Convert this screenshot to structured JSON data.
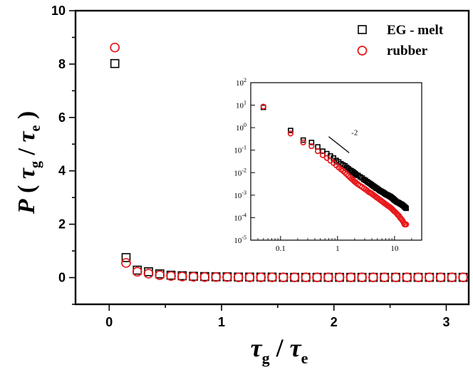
{
  "chart_data": [
    {
      "type": "scatter",
      "title": "",
      "xlabel": "τ_g / τ_e",
      "ylabel": "P ( τ_g / τ_e )",
      "xlabel_parts": {
        "tau": "τ",
        "sub1": "g",
        "slash": " / ",
        "sub2": "e"
      },
      "ylabel_parts": {
        "p": "P",
        "open": " ( ",
        "tau1": "τ",
        "sub1": "g",
        "slash": " / ",
        "tau2": "τ",
        "sub2": "e",
        "close": " )"
      },
      "xlim": [
        -0.3,
        3.2
      ],
      "ylim": [
        -1,
        10
      ],
      "xticks": [
        0,
        1,
        2,
        3
      ],
      "yticks": [
        0,
        2,
        4,
        6,
        8,
        10
      ],
      "grid": false,
      "legend_position": "top-right",
      "series": [
        {
          "name": "EG - melt",
          "marker": "square",
          "color": "#000000",
          "x": [
            0.05,
            0.15,
            0.25,
            0.35,
            0.45,
            0.55,
            0.65,
            0.75,
            0.85,
            0.95,
            1.05,
            1.15,
            1.25,
            1.35,
            1.45,
            1.55,
            1.65,
            1.75,
            1.85,
            1.95,
            2.05,
            2.15,
            2.25,
            2.35,
            2.45,
            2.55,
            2.65,
            2.75,
            2.85,
            2.95,
            3.05,
            3.15
          ],
          "y": [
            8.02,
            0.75,
            0.28,
            0.22,
            0.14,
            0.09,
            0.07,
            0.05,
            0.04,
            0.03,
            0.03,
            0.02,
            0.02,
            0.02,
            0.02,
            0.01,
            0.01,
            0.01,
            0.01,
            0.01,
            0.01,
            0.01,
            0.01,
            0.01,
            0.01,
            0.01,
            0.01,
            0.01,
            0.01,
            0.01,
            0.01,
            0.01
          ]
        },
        {
          "name": "rubber",
          "marker": "circle",
          "color": "#e8191c",
          "x": [
            0.05,
            0.15,
            0.25,
            0.35,
            0.45,
            0.55,
            0.65,
            0.75,
            0.85,
            0.95,
            1.05,
            1.15,
            1.25,
            1.35,
            1.45,
            1.55,
            1.65,
            1.75,
            1.85,
            1.95,
            2.05,
            2.15,
            2.25,
            2.35,
            2.45,
            2.55,
            2.65,
            2.75,
            2.85,
            2.95,
            3.05,
            3.15
          ],
          "y": [
            8.62,
            0.55,
            0.22,
            0.15,
            0.09,
            0.06,
            0.04,
            0.03,
            0.02,
            0.02,
            0.02,
            0.01,
            0.01,
            0.01,
            0.01,
            0.01,
            0.01,
            0.01,
            0.01,
            0.01,
            0.01,
            0.01,
            0.01,
            0.01,
            0.01,
            0.01,
            0.01,
            0.01,
            0.01,
            0.01,
            0.01,
            0.01
          ]
        }
      ]
    },
    {
      "type": "scatter",
      "title": "",
      "xscale": "log",
      "yscale": "log",
      "xlim": [
        0.03,
        30
      ],
      "ylim": [
        1e-05,
        100
      ],
      "xticks": [
        {
          "value": 0.1,
          "label": "0.1"
        },
        {
          "value": 1,
          "label": "1"
        },
        {
          "value": 10,
          "label": "10"
        }
      ],
      "yticks": [
        {
          "value": 1e-05,
          "base": "10",
          "exp": "-5"
        },
        {
          "value": 0.0001,
          "base": "10",
          "exp": "-4"
        },
        {
          "value": 0.001,
          "base": "10",
          "exp": "-3"
        },
        {
          "value": 0.01,
          "base": "10",
          "exp": "-2"
        },
        {
          "value": 0.1,
          "base": "10",
          "exp": "-1"
        },
        {
          "value": 1,
          "base": "10",
          "exp": "0"
        },
        {
          "value": 10,
          "base": "10",
          "exp": "1"
        },
        {
          "value": 100,
          "base": "10",
          "exp": "2"
        }
      ],
      "annotation": {
        "label": "-2",
        "slope": -2,
        "x_start": 0.7,
        "x_end": 1.6,
        "y_start": 0.4
      },
      "series": [
        {
          "name": "EG - melt",
          "marker": "square",
          "color": "#000000",
          "x": [
            0.05,
            0.15,
            0.25,
            0.35,
            0.45,
            0.55,
            0.65,
            0.75,
            0.85,
            0.95,
            1.05,
            1.15,
            1.25,
            1.35,
            1.45,
            1.55,
            1.65,
            1.75,
            1.85,
            1.95,
            2.05,
            2.15,
            2.3,
            2.5,
            2.7,
            2.9,
            3.1,
            3.3,
            3.5,
            3.7,
            3.9,
            4.1,
            4.3,
            4.5,
            4.7,
            4.9,
            5.2,
            5.5,
            5.8,
            6.1,
            6.4,
            6.7,
            7.0,
            7.3,
            7.6,
            7.9,
            8.2,
            8.5,
            8.8,
            9.1,
            9.4,
            9.7,
            10.0,
            10.5,
            11.0,
            11.5,
            12.0,
            12.5,
            13.0,
            13.5,
            14.0,
            14.5,
            15.0,
            15.5,
            16.0
          ],
          "y": [
            8.0,
            0.75,
            0.28,
            0.22,
            0.14,
            0.09,
            0.07,
            0.055,
            0.045,
            0.035,
            0.03,
            0.025,
            0.022,
            0.02,
            0.017,
            0.015,
            0.013,
            0.012,
            0.011,
            0.01,
            0.009,
            0.008,
            0.0075,
            0.0065,
            0.0058,
            0.005,
            0.0045,
            0.004,
            0.0036,
            0.0033,
            0.003,
            0.0027,
            0.0025,
            0.0023,
            0.0021,
            0.002,
            0.0018,
            0.0016,
            0.0015,
            0.0014,
            0.0013,
            0.0012,
            0.0011,
            0.00105,
            0.001,
            0.00095,
            0.0009,
            0.00085,
            0.0008,
            0.00075,
            0.0007,
            0.00065,
            0.0006,
            0.00055,
            0.0005,
            0.00048,
            0.00045,
            0.00042,
            0.0004,
            0.00038,
            0.00035,
            0.00033,
            0.0003,
            0.00028,
            0.00026
          ]
        },
        {
          "name": "rubber",
          "marker": "circle",
          "color": "#e8191c",
          "x": [
            0.05,
            0.15,
            0.25,
            0.35,
            0.45,
            0.55,
            0.65,
            0.75,
            0.85,
            0.95,
            1.05,
            1.15,
            1.25,
            1.35,
            1.45,
            1.55,
            1.65,
            1.75,
            1.85,
            1.95,
            2.05,
            2.15,
            2.3,
            2.5,
            2.7,
            2.9,
            3.1,
            3.3,
            3.5,
            3.7,
            3.9,
            4.1,
            4.3,
            4.5,
            4.7,
            4.9,
            5.2,
            5.5,
            5.8,
            6.1,
            6.4,
            6.7,
            7.0,
            7.3,
            7.6,
            7.9,
            8.2,
            8.5,
            8.8,
            9.1,
            9.4,
            9.7,
            10.0,
            10.5,
            11.0,
            11.5,
            12.0,
            12.5,
            13.0,
            13.5,
            14.0,
            14.5,
            15.0,
            15.5,
            16.0
          ],
          "y": [
            8.6,
            0.55,
            0.22,
            0.15,
            0.09,
            0.06,
            0.045,
            0.034,
            0.027,
            0.021,
            0.017,
            0.014,
            0.012,
            0.01,
            0.0085,
            0.0072,
            0.0062,
            0.0054,
            0.0048,
            0.0042,
            0.0038,
            0.0034,
            0.003,
            0.0026,
            0.0023,
            0.002,
            0.0018,
            0.0016,
            0.0014,
            0.0013,
            0.0012,
            0.0011,
            0.001,
            0.00092,
            0.00085,
            0.00078,
            0.0007,
            0.00063,
            0.00057,
            0.00052,
            0.00047,
            0.00043,
            0.0004,
            0.00037,
            0.00034,
            0.00032,
            0.0003,
            0.00028,
            0.00026,
            0.00024,
            0.00022,
            0.0002,
            0.00019,
            0.00017,
            0.00015,
            0.00013,
            0.00012,
            0.0001,
            9e-05,
            8e-05,
            7e-05,
            6e-05,
            5e-05,
            5e-05,
            5e-05
          ]
        }
      ]
    }
  ]
}
